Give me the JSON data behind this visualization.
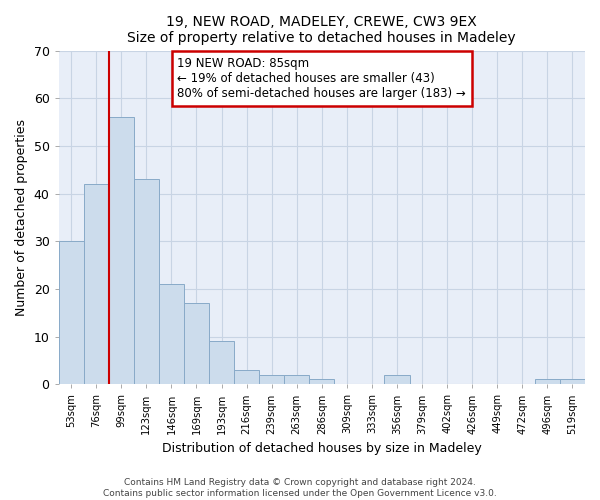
{
  "title1": "19, NEW ROAD, MADELEY, CREWE, CW3 9EX",
  "title2": "Size of property relative to detached houses in Madeley",
  "xlabel": "Distribution of detached houses by size in Madeley",
  "ylabel": "Number of detached properties",
  "categories": [
    "53sqm",
    "76sqm",
    "99sqm",
    "123sqm",
    "146sqm",
    "169sqm",
    "193sqm",
    "216sqm",
    "239sqm",
    "263sqm",
    "286sqm",
    "309sqm",
    "333sqm",
    "356sqm",
    "379sqm",
    "402sqm",
    "426sqm",
    "449sqm",
    "472sqm",
    "496sqm",
    "519sqm"
  ],
  "bar_heights": [
    30,
    42,
    56,
    43,
    21,
    17,
    9,
    3,
    2,
    2,
    1,
    0,
    0,
    2,
    0,
    0,
    0,
    0,
    0,
    1,
    1
  ],
  "bar_color": "#ccdcec",
  "bar_edge_color": "#88aac8",
  "grid_color": "#c8d4e4",
  "background_color": "#e8eef8",
  "ylim": [
    0,
    70
  ],
  "yticks": [
    0,
    10,
    20,
    30,
    40,
    50,
    60,
    70
  ],
  "red_line_x": 1.5,
  "annotation_line1": "19 NEW ROAD: 85sqm",
  "annotation_line2": "← 19% of detached houses are smaller (43)",
  "annotation_line3": "80% of semi-detached houses are larger (183) →",
  "annotation_box_color": "#ffffff",
  "annotation_box_edge_color": "#cc0000",
  "footer1": "Contains HM Land Registry data © Crown copyright and database right 2024.",
  "footer2": "Contains public sector information licensed under the Open Government Licence v3.0."
}
